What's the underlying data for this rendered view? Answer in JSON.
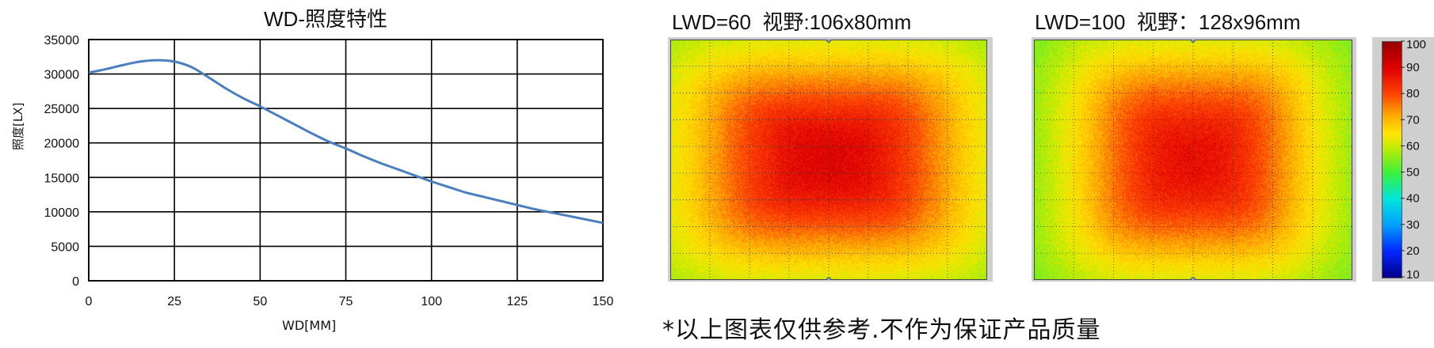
{
  "chart_data": [
    {
      "type": "line",
      "title": "WD-照度特性",
      "xlabel": "WD[MM]",
      "ylabel": "照度[LX]",
      "xlim": [
        0,
        150
      ],
      "ylim": [
        0,
        35000
      ],
      "xticks": [
        0,
        25,
        50,
        75,
        100,
        125,
        150
      ],
      "yticks": [
        0,
        5000,
        10000,
        15000,
        20000,
        25000,
        30000,
        35000
      ],
      "grid": true,
      "series": [
        {
          "color": "#4a7ebf",
          "x": [
            0,
            5,
            10,
            15,
            20,
            25,
            30,
            35,
            40,
            45,
            50,
            55,
            60,
            65,
            70,
            75,
            80,
            85,
            90,
            95,
            100,
            105,
            110,
            115,
            120,
            125,
            130,
            135,
            140,
            145,
            150
          ],
          "y": [
            30200,
            30700,
            31300,
            31800,
            32000,
            31800,
            31000,
            29500,
            27900,
            26500,
            25300,
            24000,
            22700,
            21400,
            20200,
            19200,
            18100,
            17100,
            16200,
            15300,
            14400,
            13600,
            12800,
            12200,
            11600,
            11000,
            10400,
            9900,
            9400,
            8900,
            8400
          ]
        }
      ]
    },
    {
      "type": "heatmap",
      "title": "LWD=60  视野:106x80mm",
      "value_range": [
        0,
        100
      ],
      "peak": 90,
      "edge": 58,
      "corner": 52,
      "note": "illuminance distribution, red centre fading to yellow/green edges"
    },
    {
      "type": "heatmap",
      "title": "LWD=100  视野：128x96mm",
      "value_range": [
        0,
        100
      ],
      "peak": 88,
      "edge": 55,
      "corner": 50,
      "note": "illuminance distribution, red centre fading to yellow/green edges"
    }
  ],
  "colorbar": {
    "min": 10,
    "max": 100,
    "ticks": [
      "100",
      "90",
      "80",
      "70",
      "60",
      "50",
      "40",
      "30",
      "20",
      "10"
    ]
  },
  "footnote": "*以上图表仅供参考.不作为保证产品质量"
}
